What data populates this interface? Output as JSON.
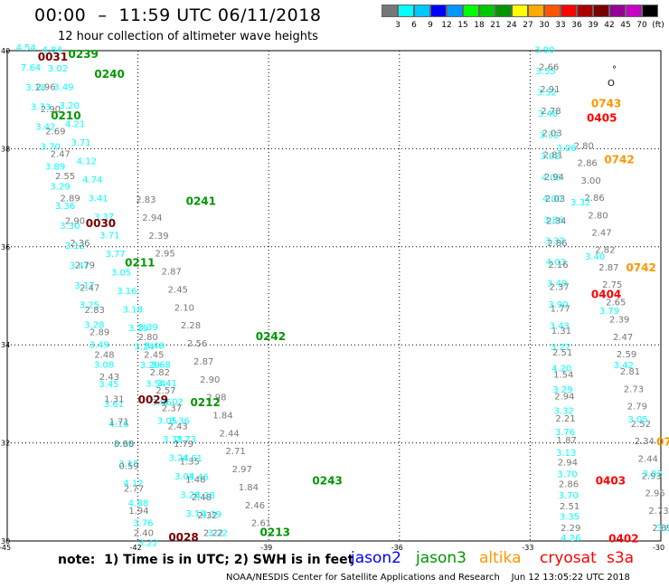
{
  "header": {
    "title": "00:00  –  11:59 UTC 06/11/2018",
    "subtitle": "12 hour collection of altimeter wave heights"
  },
  "colorbar": {
    "colors": [
      "#777777",
      "#00ffff",
      "#00c8ff",
      "#0000ff",
      "#0096ff",
      "#00ff00",
      "#00c800",
      "#009600",
      "#ffff00",
      "#ffaa00",
      "#ff5500",
      "#ff0000",
      "#aa0000",
      "#780000",
      "#960096",
      "#c800c8",
      "#000000"
    ],
    "labels": [
      "3",
      "6",
      "9",
      "12",
      "15",
      "18",
      "21",
      "24",
      "27",
      "30",
      "33",
      "36",
      "39",
      "42",
      "45",
      "70",
      "(ft)"
    ]
  },
  "map": {
    "lat_labels": [
      "40",
      "38",
      "36",
      "34",
      "32",
      "30"
    ],
    "lon_labels": [
      "-45",
      "-42",
      "-39",
      "-36",
      "-33",
      "-30"
    ],
    "symbol": "°"
  },
  "legend": {
    "note": "note:  1) Time is in UTC; 2) SWH is in feet",
    "satellites": [
      {
        "name": "jason2",
        "color": "#0000ff"
      },
      {
        "name": "jason3",
        "color": "#009600"
      },
      {
        "name": "altika",
        "color": "#ff9600"
      },
      {
        "name": "cryosat",
        "color": "#ff0000"
      },
      {
        "name": "s3a",
        "color": "#ff0000"
      }
    ]
  },
  "footer": "NOAA/NESDIS Center for Satellite Applications and Research    Jun 12 13:05:22 UTC 2018",
  "passes": [
    {
      "label": "0031",
      "color": "#780000",
      "lat": 39.8,
      "lon": -44.3
    },
    {
      "label": "0239",
      "color": "#009600",
      "lat": 39.85,
      "lon": -43.6
    },
    {
      "label": "0240",
      "color": "#009600",
      "lat": 39.45,
      "lon": -43.0
    },
    {
      "label": "0210",
      "color": "#009600",
      "lat": 38.6,
      "lon": -44.0
    },
    {
      "label": "0241",
      "color": "#009600",
      "lat": 36.85,
      "lon": -40.9
    },
    {
      "label": "0030",
      "color": "#780000",
      "lat": 36.4,
      "lon": -43.2
    },
    {
      "label": "0211",
      "color": "#009600",
      "lat": 35.6,
      "lon": -42.3
    },
    {
      "label": "0242",
      "color": "#009600",
      "lat": 34.1,
      "lon": -39.3
    },
    {
      "label": "0029",
      "color": "#780000",
      "lat": 32.8,
      "lon": -42.0
    },
    {
      "label": "0212",
      "color": "#009600",
      "lat": 32.75,
      "lon": -40.8
    },
    {
      "label": "0243",
      "color": "#009600",
      "lat": 31.15,
      "lon": -38.0
    },
    {
      "label": "0213",
      "color": "#009600",
      "lat": 30.1,
      "lon": -39.2
    },
    {
      "label": "0028",
      "color": "#780000",
      "lat": 30.0,
      "lon": -41.3
    },
    {
      "label": "0743",
      "color": "#ff9600",
      "lat": 38.85,
      "lon": -31.6
    },
    {
      "label": "0405",
      "color": "#ff0000",
      "lat": 38.55,
      "lon": -31.7
    },
    {
      "label": "0742",
      "color": "#ff9600",
      "lat": 37.7,
      "lon": -31.3
    },
    {
      "label": "0742",
      "color": "#ff9600",
      "lat": 35.5,
      "lon": -30.8
    },
    {
      "label": "0404",
      "color": "#ff0000",
      "lat": 34.95,
      "lon": -31.6
    },
    {
      "label": "0403",
      "color": "#ff0000",
      "lat": 31.15,
      "lon": -31.5
    },
    {
      "label": "0402",
      "color": "#ff0000",
      "lat": 29.97,
      "lon": -31.2
    },
    {
      "label": "07",
      "color": "#ff9600",
      "lat": 31.95,
      "lon": -30.1
    }
  ],
  "tracks": [
    {
      "color": "#00ffff",
      "lat0": 40.0,
      "lon0": -44.8,
      "lat1": 29.9,
      "lon1": -42.0,
      "values": [
        "4.54",
        "7.64",
        "3.18",
        "3.73",
        "3.42",
        "3.70",
        "3.89",
        "3.29",
        "3.36",
        "3.30",
        "3.12",
        "3.47",
        "3.17",
        "3.25",
        "3.28",
        "3.49",
        "3.08",
        "3.45",
        "3.61",
        "4.16",
        "3.39",
        "3.18",
        "4.12",
        "4.88",
        "3.76",
        "3.22"
      ]
    },
    {
      "color": "#777777",
      "lat0": 39.2,
      "lon0": -44.35,
      "lat1": 30.1,
      "lon1": -42.1,
      "values": [
        "2.96",
        "2.90",
        "2.69",
        "2.47",
        "2.55",
        "2.89",
        "2.90",
        "2.36",
        "2.79",
        "2.47",
        "2.83",
        "2.89",
        "2.48",
        "2.43",
        "1.31",
        "1.71",
        "0.60",
        "0.59",
        "2.77",
        "1.94",
        "2.40"
      ]
    },
    {
      "color": "#00ffff",
      "lat0": 39.95,
      "lon0": -44.2,
      "lat1": 30.5,
      "lon1": -40.9,
      "values": [
        "4.84",
        "3.02",
        "3.49",
        "3.20",
        "4.21",
        "3.71",
        "4.12",
        "4.74",
        "3.41",
        "3.37",
        "3.71",
        "3.77",
        "3.05",
        "3.16",
        "3.18",
        "3.19",
        "3.24",
        "3.29",
        "3.54",
        "3.06",
        "3.05",
        "3.35",
        "3.24",
        "3.04",
        "3.25",
        "3.10"
      ]
    },
    {
      "color": "#777777",
      "lat0": 36.9,
      "lon0": -42.05,
      "lat1": 30.3,
      "lon1": -39.4,
      "values": [
        "2.83",
        "2.94",
        "2.39",
        "2.95",
        "2.87",
        "2.45",
        "2.10",
        "2.28",
        "2.56",
        "2.87",
        "2.90",
        "2.98",
        "1.84",
        "2.44",
        "2.71",
        "2.97",
        "1.84",
        "2.46",
        "2.61"
      ]
    },
    {
      "color": "#00ffff",
      "lat0": 34.3,
      "lon0": -42.0,
      "lat1": 30.1,
      "lon1": -40.4,
      "values": [
        "3.39",
        "3.48",
        "3.68",
        "3.41",
        "3.02",
        "3.36",
        "2.73",
        "4.61",
        "3.46",
        "4.28",
        "4.39",
        "3.22"
      ]
    },
    {
      "color": "#777777",
      "lat0": 34.1,
      "lon0": -42.0,
      "lat1": 30.1,
      "lon1": -40.5,
      "values": [
        "2.80",
        "2.45",
        "2.82",
        "2.57",
        "2.37",
        "2.43",
        "1.79",
        "1.35",
        "1.48",
        "2.48",
        "2.32",
        "2.22"
      ]
    },
    {
      "color": "#00ffff",
      "lat0": 39.95,
      "lon0": -32.9,
      "lat1": 30.0,
      "lon1": -32.3,
      "values": [
        "3.90",
        "3.55",
        "3.52",
        "3.48",
        "3.32",
        "3.92",
        "4.06",
        "4.00",
        "3.86",
        "3.32",
        "4.03",
        "3.49",
        "3.90",
        "3.43",
        "3.27",
        "4.20",
        "3.29",
        "3.32",
        "3.76",
        "3.13",
        "3.70",
        "3.70",
        "3.35",
        "4.26"
      ]
    },
    {
      "color": "#777777",
      "lat0": 39.6,
      "lon0": -32.8,
      "lat1": 30.2,
      "lon1": -32.3,
      "values": [
        "2.66",
        "2.91",
        "2.78",
        "2.03",
        "2.81",
        "2.94",
        "2.03",
        "2.34",
        "2.86",
        "2.16",
        "2.37",
        "1.77",
        "1.31",
        "2.51",
        "1.54",
        "2.94",
        "2.21",
        "1.87",
        "2.94",
        "2.86",
        "2.51",
        "2.29"
      ]
    },
    {
      "color": "#777777",
      "lat0": 38.0,
      "lon0": -32.0,
      "lat1": 30.2,
      "lon1": -30.2,
      "values": [
        "2.80",
        "2.86",
        "3.00",
        "2.86",
        "2.80",
        "2.47",
        "2.82",
        "2.87",
        "2.75",
        "2.65",
        "2.39",
        "2.47",
        "2.59",
        "2.81",
        "2.73",
        "2.79",
        "2.52",
        "2.34",
        "2.44",
        "2.93",
        "2.95",
        "2.73",
        "2.89"
      ]
    },
    {
      "color": "#00ffff",
      "lat0": 37.95,
      "lon0": -32.4,
      "lat1": 30.2,
      "lon1": -30.1,
      "values": [
        "3.06",
        "3.32",
        "3.40",
        "3.79",
        "3.42",
        "3.05",
        "3.02",
        "3.04"
      ]
    }
  ]
}
